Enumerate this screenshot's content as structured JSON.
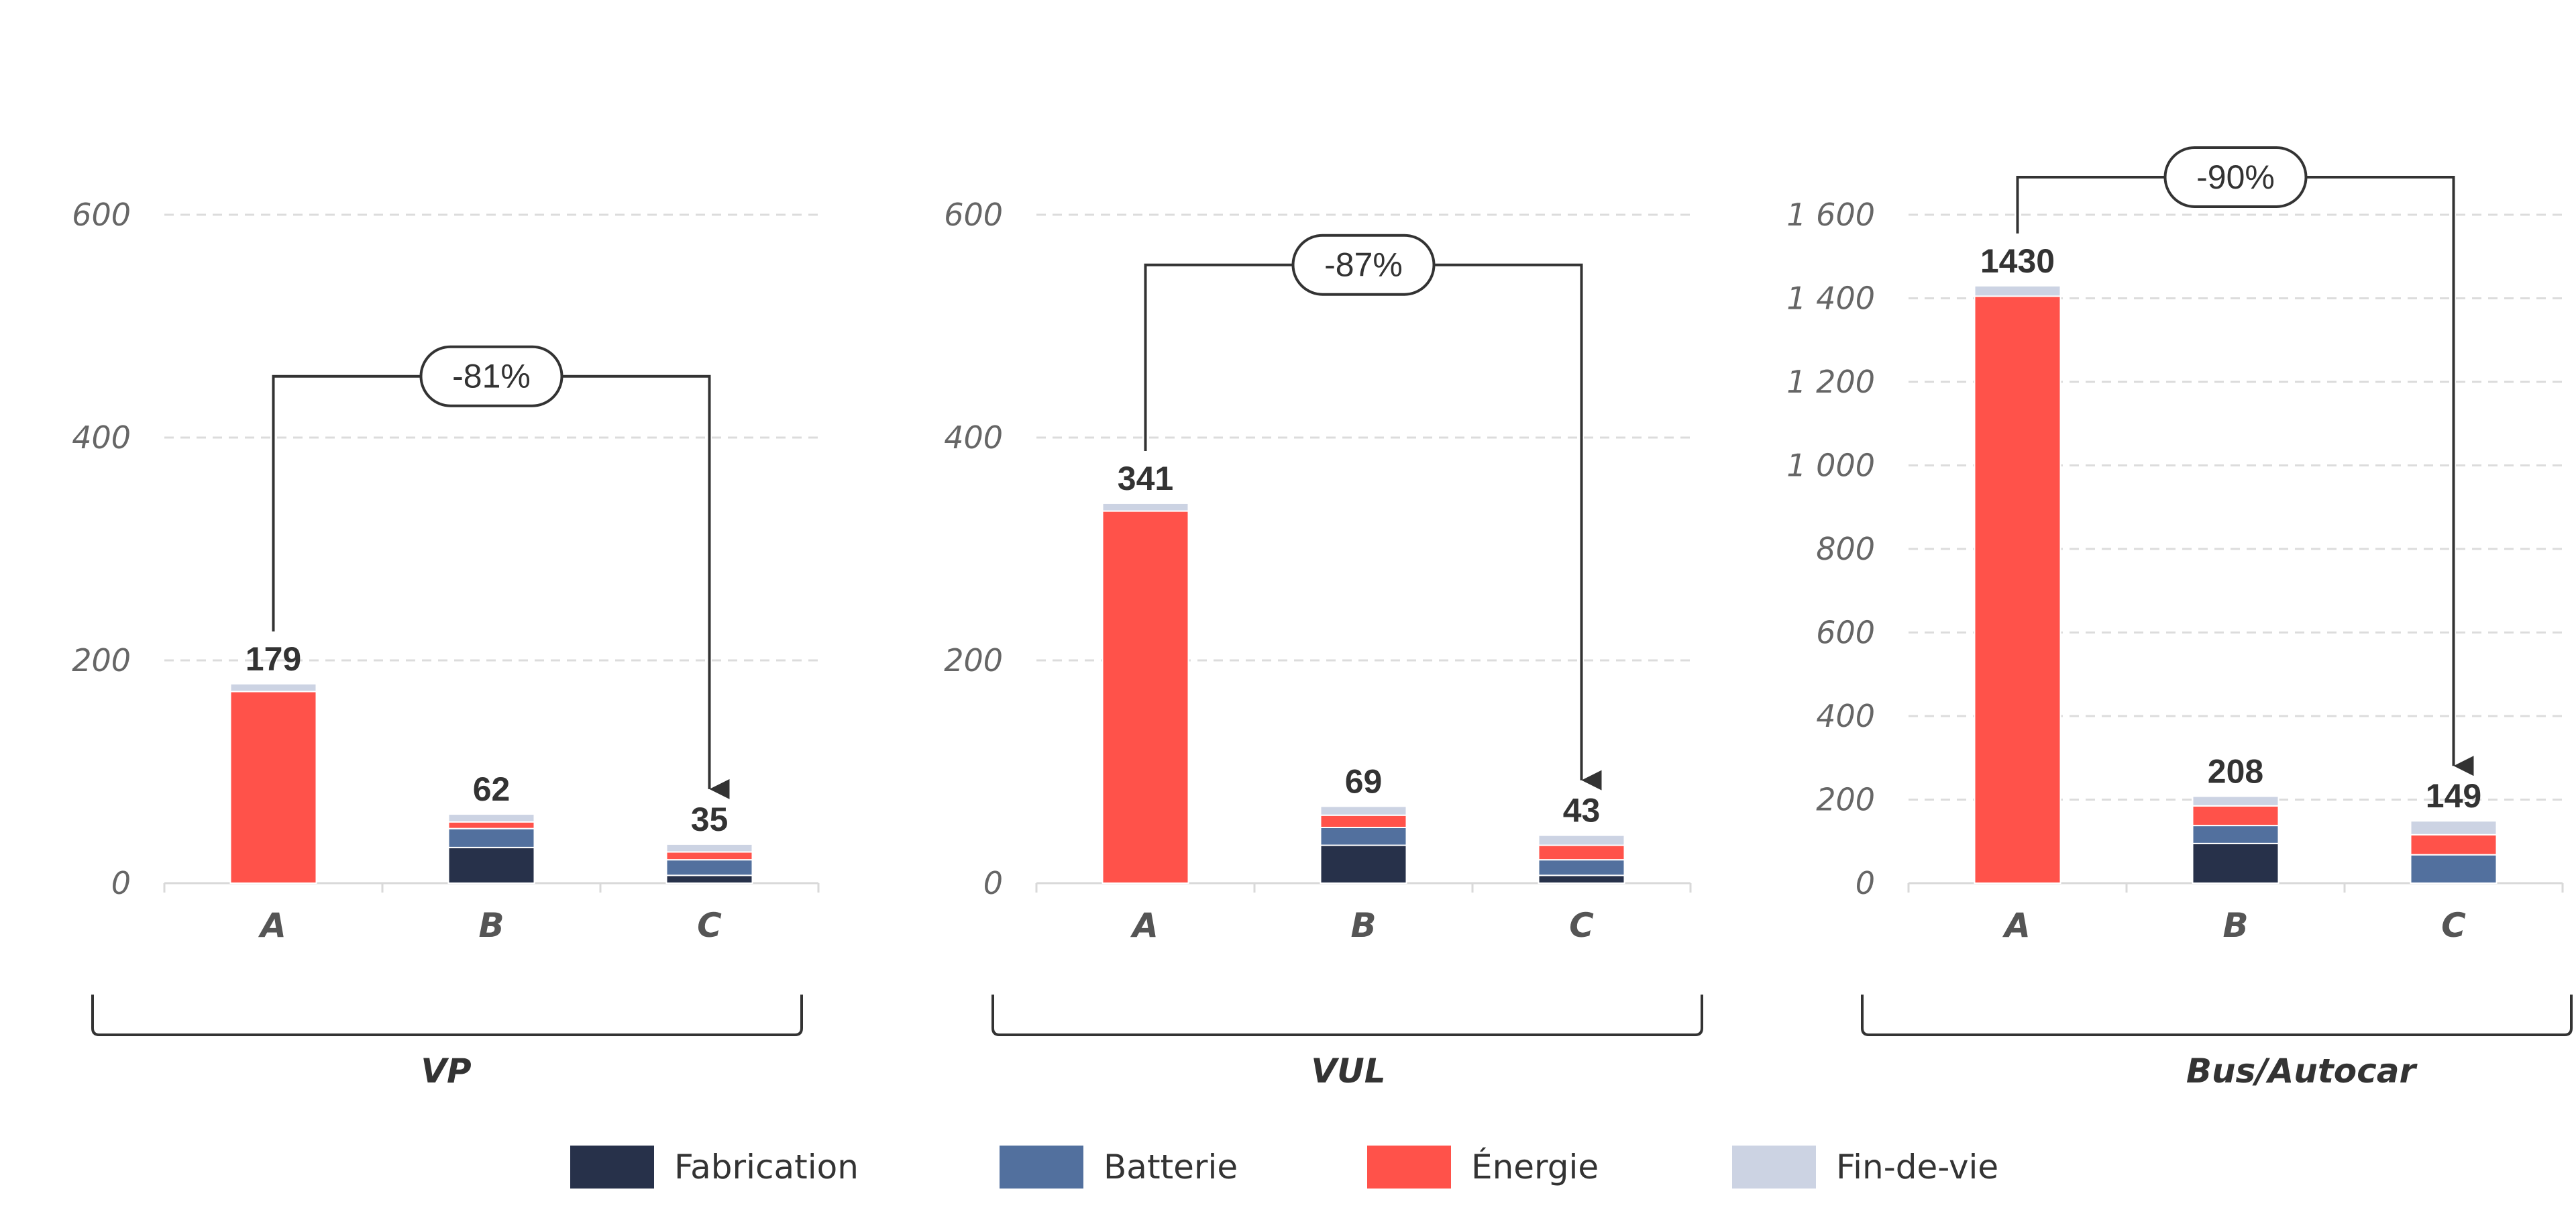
{
  "colors": {
    "fabrication": "#27314a",
    "batterie": "#52709e",
    "energie": "#ff524a",
    "findevie": "#ccd3e3"
  },
  "legend": [
    {
      "key": "fabrication",
      "label": "Fabrication"
    },
    {
      "key": "batterie",
      "label": "Batterie"
    },
    {
      "key": "energie",
      "label": "Énergie"
    },
    {
      "key": "findevie",
      "label": "Fin-de-vie"
    }
  ],
  "chart_data": [
    {
      "type": "bar",
      "stacked": true,
      "group_label": "VP",
      "categories": [
        "A",
        "B",
        "C"
      ],
      "ylim": [
        0,
        600
      ],
      "yticks": [
        0,
        200,
        400,
        600
      ],
      "ytick_labels": [
        "0",
        "200",
        "400",
        "600"
      ],
      "grid": true,
      "series": [
        {
          "name": "Fabrication",
          "values": [
            0,
            32,
            7
          ]
        },
        {
          "name": "Batterie",
          "values": [
            0,
            17,
            14
          ]
        },
        {
          "name": "Énergie",
          "values": [
            172,
            6,
            7
          ]
        },
        {
          "name": "Fin-de-vie",
          "values": [
            7,
            7,
            7
          ]
        }
      ],
      "totals": [
        "179",
        "62",
        "35"
      ],
      "reduction": {
        "label": "-81%",
        "from": "A",
        "to": "C"
      }
    },
    {
      "type": "bar",
      "stacked": true,
      "group_label": "VUL",
      "categories": [
        "A",
        "B",
        "C"
      ],
      "ylim": [
        0,
        600
      ],
      "yticks": [
        0,
        200,
        400,
        600
      ],
      "ytick_labels": [
        "0",
        "200",
        "400",
        "600"
      ],
      "grid": true,
      "series": [
        {
          "name": "Fabrication",
          "values": [
            0,
            34,
            7
          ]
        },
        {
          "name": "Batterie",
          "values": [
            0,
            16,
            14
          ]
        },
        {
          "name": "Énergie",
          "values": [
            334,
            11,
            13
          ]
        },
        {
          "name": "Fin-de-vie",
          "values": [
            7,
            8,
            9
          ]
        }
      ],
      "totals": [
        "341",
        "69",
        "43"
      ],
      "reduction": {
        "label": "-87%",
        "from": "A",
        "to": "C"
      }
    },
    {
      "type": "bar",
      "stacked": true,
      "group_label": "Bus/Autocar",
      "categories": [
        "A",
        "B",
        "C"
      ],
      "ylim": [
        0,
        1600
      ],
      "yticks": [
        0,
        200,
        400,
        600,
        800,
        1000,
        1200,
        1400,
        1600
      ],
      "ytick_labels": [
        "0",
        "200",
        "400",
        "600",
        "800",
        "1 000",
        "1 200",
        "1 400",
        "1 600"
      ],
      "grid": true,
      "series": [
        {
          "name": "Fabrication",
          "values": [
            0,
            95,
            0
          ]
        },
        {
          "name": "Batterie",
          "values": [
            0,
            43,
            68
          ]
        },
        {
          "name": "Énergie",
          "values": [
            1405,
            47,
            48
          ]
        },
        {
          "name": "Fin-de-vie",
          "values": [
            25,
            23,
            33
          ]
        }
      ],
      "totals": [
        "1430",
        "208",
        "149"
      ],
      "reduction": {
        "label": "-90%",
        "from": "A",
        "to": "C"
      }
    }
  ]
}
